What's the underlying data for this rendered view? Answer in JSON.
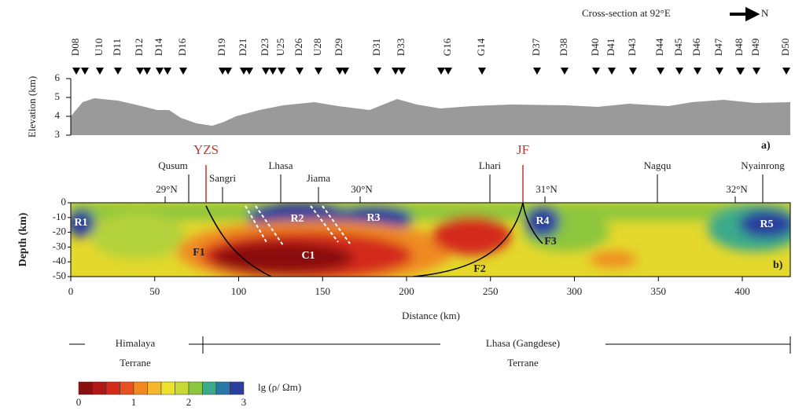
{
  "header": {
    "caption": "Cross-section at 92°E",
    "direction": "N"
  },
  "stations": [
    "D08",
    "U10",
    "D11",
    "D12",
    "D14",
    "D16",
    "D19",
    "D21",
    "D23",
    "U25",
    "D26",
    "U28",
    "D29",
    "D31",
    "D33",
    "G16",
    "G14",
    "D37",
    "D38",
    "D40",
    "D41",
    "D43",
    "D44",
    "D45",
    "D46",
    "D47",
    "D48",
    "D49",
    "D50"
  ],
  "elevation_panel": {
    "axis_label": "Elevation (km)",
    "ticks": [
      "6",
      "5",
      "4",
      "3"
    ],
    "panel_label": "a)"
  },
  "sutures": [
    "YZS",
    "JF"
  ],
  "places": [
    "Qusum",
    "Sangri",
    "Lhasa",
    "Jiama",
    "Lhari",
    "Nagqu",
    "Nyainrong"
  ],
  "latitudes": [
    "29°N",
    "30°N",
    "31°N",
    "32°N"
  ],
  "section": {
    "axis_label": "Depth (km)",
    "depth_ticks": [
      "0",
      "-10",
      "-20",
      "-30",
      "-40",
      "-50"
    ],
    "distance_ticks": [
      "0",
      "50",
      "100",
      "150",
      "200",
      "250",
      "300",
      "350",
      "400"
    ],
    "x_label": "Distance (km)",
    "panel_label": "b)",
    "features": [
      "R1",
      "R2",
      "R3",
      "R4",
      "R5",
      "C1",
      "F1",
      "F2",
      "F3"
    ]
  },
  "terranes": [
    {
      "name": "Himalaya",
      "sub": "Terrane"
    },
    {
      "name": "Lhasa (Gangdese)",
      "sub": "Terrane"
    }
  ],
  "colorbar": {
    "ticks": [
      "0",
      "1",
      "2",
      "3"
    ],
    "label": "lg (ρ/ Ωm)"
  }
}
